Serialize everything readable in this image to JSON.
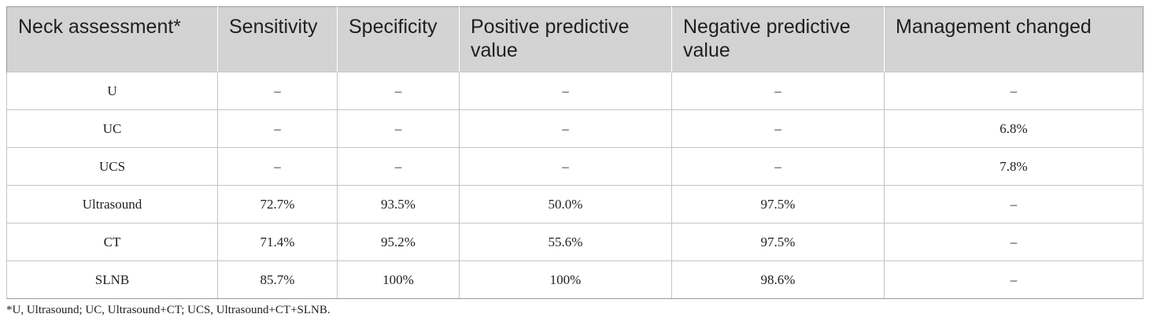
{
  "table": {
    "headers": [
      "Neck assessment*",
      "Sensitivity",
      "Specificity",
      "Positive predictive value",
      "Negative predictive value",
      "Management changed"
    ],
    "rows": [
      [
        "U",
        "–",
        "–",
        "–",
        "–",
        "–"
      ],
      [
        "UC",
        "–",
        "–",
        "–",
        "–",
        "6.8%"
      ],
      [
        "UCS",
        "–",
        "–",
        "–",
        "–",
        "7.8%"
      ],
      [
        "Ultrasound",
        "72.7%",
        "93.5%",
        "50.0%",
        "97.5%",
        "–"
      ],
      [
        "CT",
        "71.4%",
        "95.2%",
        "55.6%",
        "97.5%",
        "–"
      ],
      [
        "SLNB",
        "85.7%",
        "100%",
        "100%",
        "98.6%",
        "–"
      ]
    ]
  },
  "footnote": "*U, Ultrasound; UC, Ultrasound+CT; UCS, Ultrasound+CT+SLNB."
}
